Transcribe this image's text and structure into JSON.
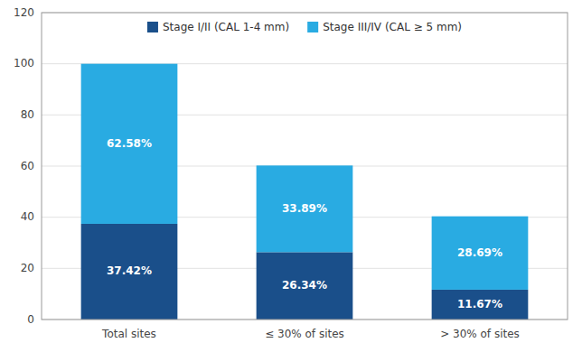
{
  "chart_data": {
    "type": "bar",
    "stacked": true,
    "categories": [
      "Total sites",
      "≤ 30% of sites",
      "> 30% of sites"
    ],
    "series": [
      {
        "name": "Stage I/II (CAL 1-4 mm)",
        "color": "#1a4f8a",
        "values": [
          37.42,
          26.34,
          11.67
        ],
        "value_labels": [
          "37.42%",
          "26.34%",
          "11.67%"
        ]
      },
      {
        "name": "Stage III/IV (CAL ≥ 5 mm)",
        "color": "#29abe2",
        "values": [
          62.58,
          33.89,
          28.69
        ],
        "value_labels": [
          "62.58%",
          "33.89%",
          "28.69%"
        ]
      }
    ],
    "ylim": [
      0,
      120
    ],
    "yticks": [
      0,
      20,
      40,
      60,
      80,
      100,
      120
    ],
    "grid": true,
    "legend": "top",
    "data_labels": true
  }
}
